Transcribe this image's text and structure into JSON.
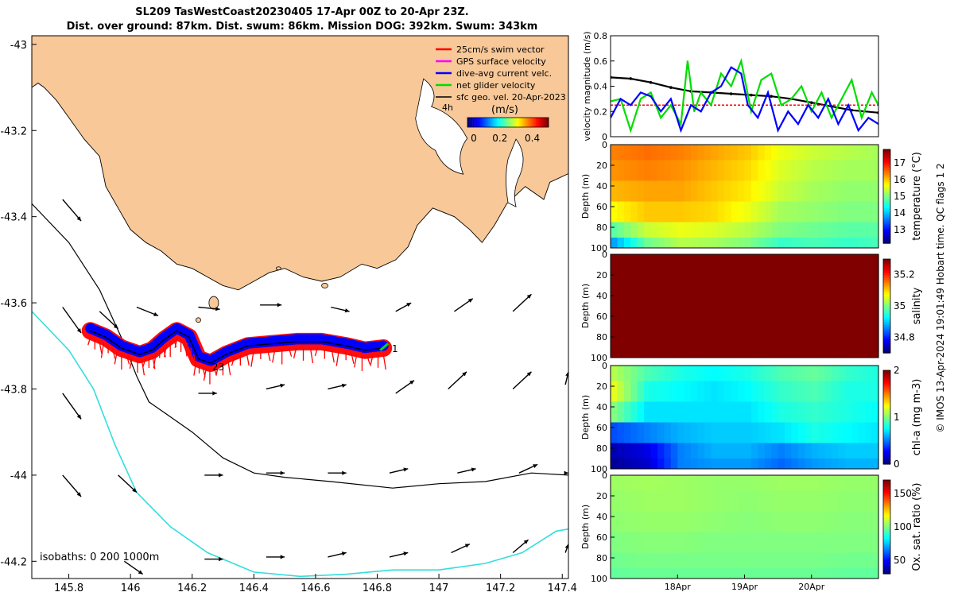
{
  "header": {
    "title_line1": "SL209 TasWestCoast20230405 17-Apr 00Z to 20-Apr 23Z.",
    "title_line2": "Dist. over ground: 87km. Dist. swum: 86km. Mission DOG: 392km. Swum: 343km"
  },
  "credit": "© IMOS 13-Apr-2024 19:01:49 Hobart time. QC flags 1  2",
  "colors": {
    "land": "#f8c898",
    "swim": "#ff0000",
    "gps": "#ff00ff",
    "dive": "#0000ff",
    "net": "#00dd00",
    "geo": "#000000",
    "isobath_200": "#000000",
    "isobath_1000": "#33dddd",
    "salinity_fill": "#990000",
    "oxygen_fill": "#22cc22"
  },
  "chart_data": [
    {
      "type": "map",
      "title": "SL209 TasWestCoast20230405 17-Apr 00Z to 20-Apr 23Z.",
      "xticks": [
        145.8,
        146,
        146.2,
        146.4,
        146.6,
        146.8,
        147,
        147.2,
        147.4
      ],
      "yticks": [
        -43,
        -43.2,
        -43.4,
        -43.6,
        -43.8,
        -44,
        -44.2
      ],
      "xlim": [
        145.68,
        147.42
      ],
      "ylim": [
        -44.24,
        -42.98
      ],
      "legend": {
        "position": "top-right",
        "entries": [
          "25cm/s swim vector",
          "GPS surface velocity",
          "dive-avg current velc.",
          "net glider velocity",
          "sfc geo. vel. 20-Apr-2023"
        ]
      },
      "partial_label": "4h",
      "colorbar": {
        "label": "(m/s)",
        "ticks": [
          0,
          0.2,
          0.4
        ],
        "range": [
          0,
          0.5
        ]
      },
      "isobaths_label": "isobaths: 0   200  1000m",
      "track_labels": [
        "1",
        "23"
      ],
      "track": [
        [
          145.87,
          -43.665
        ],
        [
          145.92,
          -43.68
        ],
        [
          145.97,
          -43.705
        ],
        [
          146.03,
          -43.72
        ],
        [
          146.07,
          -43.71
        ],
        [
          146.11,
          -43.685
        ],
        [
          146.15,
          -43.665
        ],
        [
          146.19,
          -43.68
        ],
        [
          146.22,
          -43.73
        ],
        [
          146.26,
          -43.74
        ],
        [
          146.31,
          -43.72
        ],
        [
          146.38,
          -43.7
        ],
        [
          146.46,
          -43.695
        ],
        [
          146.54,
          -43.69
        ],
        [
          146.62,
          -43.69
        ],
        [
          146.7,
          -43.7
        ],
        [
          146.76,
          -43.71
        ],
        [
          146.82,
          -43.705
        ]
      ],
      "isobath_200": [
        [
          145.68,
          -43.37
        ],
        [
          145.8,
          -43.46
        ],
        [
          145.9,
          -43.57
        ],
        [
          145.97,
          -43.68
        ],
        [
          146.02,
          -43.77
        ],
        [
          146.06,
          -43.83
        ],
        [
          146.12,
          -43.86
        ],
        [
          146.2,
          -43.9
        ],
        [
          146.3,
          -43.96
        ],
        [
          146.4,
          -43.995
        ],
        [
          146.5,
          -44.005
        ],
        [
          146.65,
          -44.015
        ],
        [
          146.85,
          -44.03
        ],
        [
          147.0,
          -44.02
        ],
        [
          147.15,
          -44.015
        ],
        [
          147.3,
          -43.995
        ],
        [
          147.42,
          -44.0
        ]
      ],
      "isobath_1000": [
        [
          145.68,
          -43.62
        ],
        [
          145.8,
          -43.71
        ],
        [
          145.88,
          -43.8
        ],
        [
          145.95,
          -43.93
        ],
        [
          146.02,
          -44.04
        ],
        [
          146.13,
          -44.12
        ],
        [
          146.25,
          -44.18
        ],
        [
          146.4,
          -44.225
        ],
        [
          146.55,
          -44.235
        ],
        [
          146.7,
          -44.23
        ],
        [
          146.85,
          -44.22
        ],
        [
          147.0,
          -44.22
        ],
        [
          147.15,
          -44.205
        ],
        [
          147.27,
          -44.18
        ],
        [
          147.38,
          -44.13
        ],
        [
          147.42,
          -44.125
        ]
      ],
      "geo_vectors": [
        {
          "lon": 145.78,
          "lat": -43.36,
          "dx": 0.06,
          "dy": -0.05
        },
        {
          "lon": 145.78,
          "lat": -43.61,
          "dx": 0.06,
          "dy": -0.06
        },
        {
          "lon": 145.9,
          "lat": -43.62,
          "dx": 0.06,
          "dy": -0.04
        },
        {
          "lon": 146.02,
          "lat": -43.61,
          "dx": 0.07,
          "dy": -0.02
        },
        {
          "lon": 146.22,
          "lat": -43.61,
          "dx": 0.07,
          "dy": -0.005
        },
        {
          "lon": 146.42,
          "lat": -43.605,
          "dx": 0.07,
          "dy": 0.0
        },
        {
          "lon": 146.65,
          "lat": -43.61,
          "dx": 0.06,
          "dy": -0.01
        },
        {
          "lon": 146.86,
          "lat": -43.62,
          "dx": 0.05,
          "dy": 0.02
        },
        {
          "lon": 147.05,
          "lat": -43.62,
          "dx": 0.06,
          "dy": 0.03
        },
        {
          "lon": 147.24,
          "lat": -43.62,
          "dx": 0.06,
          "dy": 0.04
        },
        {
          "lon": 147.42,
          "lat": -43.61,
          "dx": 0.01,
          "dy": 0.02
        },
        {
          "lon": 145.78,
          "lat": -43.81,
          "dx": 0.06,
          "dy": -0.06
        },
        {
          "lon": 146.22,
          "lat": -43.81,
          "dx": 0.06,
          "dy": 0.0
        },
        {
          "lon": 146.44,
          "lat": -43.8,
          "dx": 0.06,
          "dy": 0.01
        },
        {
          "lon": 146.64,
          "lat": -43.8,
          "dx": 0.06,
          "dy": 0.01
        },
        {
          "lon": 146.86,
          "lat": -43.81,
          "dx": 0.06,
          "dy": 0.03
        },
        {
          "lon": 147.03,
          "lat": -43.8,
          "dx": 0.06,
          "dy": 0.04
        },
        {
          "lon": 147.24,
          "lat": -43.8,
          "dx": 0.06,
          "dy": 0.04
        },
        {
          "lon": 147.41,
          "lat": -43.79,
          "dx": 0.01,
          "dy": 0.03
        },
        {
          "lon": 145.78,
          "lat": -44.0,
          "dx": 0.06,
          "dy": -0.05
        },
        {
          "lon": 145.96,
          "lat": -44.0,
          "dx": 0.06,
          "dy": -0.04
        },
        {
          "lon": 146.24,
          "lat": -44.0,
          "dx": 0.06,
          "dy": 0.0
        },
        {
          "lon": 146.44,
          "lat": -43.995,
          "dx": 0.06,
          "dy": 0.0
        },
        {
          "lon": 146.64,
          "lat": -43.995,
          "dx": 0.06,
          "dy": 0.0
        },
        {
          "lon": 146.84,
          "lat": -43.995,
          "dx": 0.06,
          "dy": 0.01
        },
        {
          "lon": 147.06,
          "lat": -43.995,
          "dx": 0.06,
          "dy": 0.01
        },
        {
          "lon": 147.26,
          "lat": -43.995,
          "dx": 0.06,
          "dy": 0.02
        },
        {
          "lon": 147.41,
          "lat": -43.995,
          "dx": 0.01,
          "dy": 0.0
        },
        {
          "lon": 145.98,
          "lat": -44.2,
          "dx": 0.06,
          "dy": -0.03
        },
        {
          "lon": 146.24,
          "lat": -44.195,
          "dx": 0.06,
          "dy": 0.0
        },
        {
          "lon": 146.44,
          "lat": -44.19,
          "dx": 0.06,
          "dy": 0.0
        },
        {
          "lon": 146.64,
          "lat": -44.19,
          "dx": 0.06,
          "dy": 0.01
        },
        {
          "lon": 146.84,
          "lat": -44.19,
          "dx": 0.06,
          "dy": 0.01
        },
        {
          "lon": 147.04,
          "lat": -44.18,
          "dx": 0.06,
          "dy": 0.02
        },
        {
          "lon": 147.24,
          "lat": -44.18,
          "dx": 0.05,
          "dy": 0.03
        },
        {
          "lon": 147.41,
          "lat": -44.18,
          "dx": 0.01,
          "dy": 0.02
        }
      ]
    },
    {
      "type": "line",
      "ylabel": "velocity magnitude (m/s)",
      "ylim": [
        0,
        0.8
      ],
      "yticks": [
        0,
        0.2,
        0.4,
        0.6,
        0.8
      ],
      "x_range_days": [
        17.0,
        21.0
      ],
      "series": [
        {
          "name": "sfc geo. vel.",
          "color": "#000000",
          "x": [
            17.0,
            17.3,
            17.6,
            17.9,
            18.2,
            18.5,
            18.8,
            19.1,
            19.4,
            19.7,
            20.0,
            20.3,
            20.6,
            21.0
          ],
          "values": [
            0.47,
            0.46,
            0.43,
            0.39,
            0.36,
            0.35,
            0.34,
            0.33,
            0.32,
            0.3,
            0.27,
            0.24,
            0.21,
            0.19
          ]
        },
        {
          "name": "swim vector",
          "color": "#ff0000",
          "x": [
            17.0,
            21.0
          ],
          "values": [
            0.25,
            0.25
          ]
        },
        {
          "name": "net glider velocity",
          "color": "#00dd00",
          "x": [
            17.0,
            17.15,
            17.3,
            17.45,
            17.6,
            17.75,
            17.9,
            18.05,
            18.15,
            18.25,
            18.35,
            18.5,
            18.65,
            18.8,
            18.95,
            19.1,
            19.25,
            19.4,
            19.55,
            19.7,
            19.85,
            20.0,
            20.15,
            20.3,
            20.45,
            20.6,
            20.75,
            20.9,
            21.0
          ],
          "values": [
            0.28,
            0.3,
            0.05,
            0.3,
            0.35,
            0.15,
            0.25,
            0.1,
            0.6,
            0.2,
            0.35,
            0.25,
            0.5,
            0.4,
            0.6,
            0.2,
            0.45,
            0.5,
            0.25,
            0.3,
            0.4,
            0.2,
            0.35,
            0.15,
            0.3,
            0.45,
            0.15,
            0.35,
            0.25
          ]
        },
        {
          "name": "dive-avg current velc.",
          "color": "#0000ff",
          "x": [
            17.0,
            17.15,
            17.3,
            17.45,
            17.6,
            17.75,
            17.9,
            18.05,
            18.2,
            18.35,
            18.5,
            18.65,
            18.8,
            18.95,
            19.05,
            19.2,
            19.35,
            19.5,
            19.65,
            19.8,
            19.95,
            20.1,
            20.25,
            20.4,
            20.55,
            20.7,
            20.85,
            21.0
          ],
          "values": [
            0.15,
            0.3,
            0.25,
            0.35,
            0.32,
            0.2,
            0.3,
            0.05,
            0.25,
            0.2,
            0.35,
            0.4,
            0.55,
            0.5,
            0.25,
            0.15,
            0.35,
            0.05,
            0.2,
            0.1,
            0.25,
            0.15,
            0.3,
            0.1,
            0.25,
            0.05,
            0.15,
            0.1
          ]
        }
      ]
    },
    {
      "type": "heatmap",
      "variable": "temperature",
      "colorbar_label": "temperature (°C)",
      "colorbar_ticks": [
        13,
        14,
        15,
        16,
        17
      ],
      "colorbar_range": [
        12.2,
        17.8
      ],
      "ylabel": "Depth (m)",
      "yticks": [
        0,
        20,
        40,
        60,
        80,
        100
      ],
      "ylim": [
        0,
        100
      ],
      "depth_rows": [
        5,
        25,
        45,
        65,
        85,
        95
      ],
      "time_cols": [
        17.0,
        17.5,
        18.0,
        18.5,
        19.0,
        19.5,
        20.0,
        20.5,
        21.0
      ],
      "values": [
        [
          16.4,
          16.5,
          16.4,
          16.2,
          16.0,
          15.6,
          15.4,
          15.3,
          15.2
        ],
        [
          16.3,
          16.4,
          16.3,
          16.1,
          15.9,
          15.5,
          15.3,
          15.2,
          15.2
        ],
        [
          16.1,
          16.2,
          16.2,
          16.0,
          15.8,
          15.4,
          15.2,
          15.1,
          15.1
        ],
        [
          15.7,
          16.0,
          16.0,
          15.9,
          15.6,
          15.2,
          15.1,
          15.0,
          15.0
        ],
        [
          14.8,
          15.4,
          15.6,
          15.5,
          15.3,
          15.0,
          14.9,
          14.8,
          14.8
        ],
        [
          13.8,
          14.9,
          15.3,
          15.2,
          15.0,
          14.6,
          14.7,
          14.6,
          14.7
        ]
      ]
    },
    {
      "type": "heatmap",
      "variable": "salinity",
      "colorbar_label": "salinity",
      "colorbar_ticks": [
        34.8,
        35,
        35.2
      ],
      "colorbar_range": [
        34.7,
        35.3
      ],
      "ylabel": "Depth (m)",
      "yticks": [
        0,
        20,
        40,
        60,
        80,
        100
      ],
      "ylim": [
        0,
        100
      ],
      "depth_rows": [
        5,
        25,
        45,
        65,
        85,
        95
      ],
      "time_cols": [
        17.0,
        17.5,
        18.0,
        18.5,
        19.0,
        19.5,
        20.0,
        20.5,
        21.0
      ],
      "values": [
        [
          35.3,
          35.3,
          35.3,
          35.3,
          35.3,
          35.3,
          35.3,
          35.3,
          35.3
        ],
        [
          35.3,
          35.3,
          35.3,
          35.3,
          35.3,
          35.3,
          35.3,
          35.3,
          35.3
        ],
        [
          35.3,
          35.3,
          35.3,
          35.3,
          35.3,
          35.3,
          35.3,
          35.3,
          35.3
        ],
        [
          35.3,
          35.3,
          35.3,
          35.3,
          35.3,
          35.3,
          35.3,
          35.3,
          35.3
        ],
        [
          35.3,
          35.3,
          35.3,
          35.3,
          35.3,
          35.3,
          35.3,
          35.3,
          35.3
        ],
        [
          35.3,
          35.3,
          35.3,
          35.3,
          35.3,
          35.3,
          35.3,
          35.3,
          35.3
        ]
      ]
    },
    {
      "type": "heatmap",
      "variable": "chl-a",
      "colorbar_label": "chl-a (mg m-3)",
      "colorbar_ticks": [
        0,
        1,
        2
      ],
      "colorbar_range": [
        0,
        2
      ],
      "ylabel": "Depth (m)",
      "yticks": [
        0,
        20,
        40,
        60,
        80,
        100
      ],
      "ylim": [
        0,
        100
      ],
      "depth_rows": [
        5,
        25,
        45,
        65,
        85,
        95
      ],
      "time_cols": [
        17.0,
        17.5,
        18.0,
        18.5,
        19.0,
        19.5,
        20.0,
        20.5,
        21.0
      ],
      "values": [
        [
          1.1,
          0.9,
          0.8,
          0.75,
          0.8,
          0.9,
          0.95,
          0.85,
          0.8
        ],
        [
          1.2,
          0.8,
          0.75,
          0.7,
          0.75,
          0.85,
          0.9,
          0.8,
          0.8
        ],
        [
          1.0,
          0.7,
          0.7,
          0.7,
          0.7,
          0.8,
          0.85,
          0.8,
          0.75
        ],
        [
          0.4,
          0.5,
          0.6,
          0.65,
          0.65,
          0.7,
          0.8,
          0.75,
          0.7
        ],
        [
          0.1,
          0.2,
          0.5,
          0.6,
          0.6,
          0.5,
          0.6,
          0.65,
          0.65
        ],
        [
          0.05,
          0.15,
          0.5,
          0.55,
          0.55,
          0.45,
          0.55,
          0.6,
          0.6
        ]
      ]
    },
    {
      "type": "heatmap",
      "variable": "oxygen",
      "colorbar_label": "Ox. sat. ratio (%)",
      "colorbar_ticks": [
        50,
        100,
        150
      ],
      "colorbar_range": [
        30,
        170
      ],
      "ylabel": "Depth (m)",
      "yticks": [
        0,
        20,
        40,
        60,
        80,
        100
      ],
      "ylim": [
        0,
        100
      ],
      "xticks": [
        "18Apr",
        "19Apr",
        "20Apr"
      ],
      "depth_rows": [
        5,
        25,
        45,
        65,
        85,
        95
      ],
      "time_cols": [
        17.0,
        17.5,
        18.0,
        18.5,
        19.0,
        19.5,
        20.0,
        20.5,
        21.0
      ],
      "values": [
        [
          104,
          105,
          104,
          103,
          103,
          104,
          104,
          103,
          103
        ],
        [
          103,
          104,
          104,
          103,
          102,
          103,
          103,
          102,
          102
        ],
        [
          102,
          103,
          103,
          102,
          101,
          102,
          102,
          101,
          101
        ],
        [
          100,
          101,
          101,
          100,
          100,
          100,
          100,
          100,
          100
        ],
        [
          98,
          99,
          99,
          99,
          99,
          99,
          99,
          98,
          98
        ],
        [
          96,
          97,
          97,
          97,
          97,
          97,
          97,
          96,
          96
        ]
      ]
    }
  ]
}
